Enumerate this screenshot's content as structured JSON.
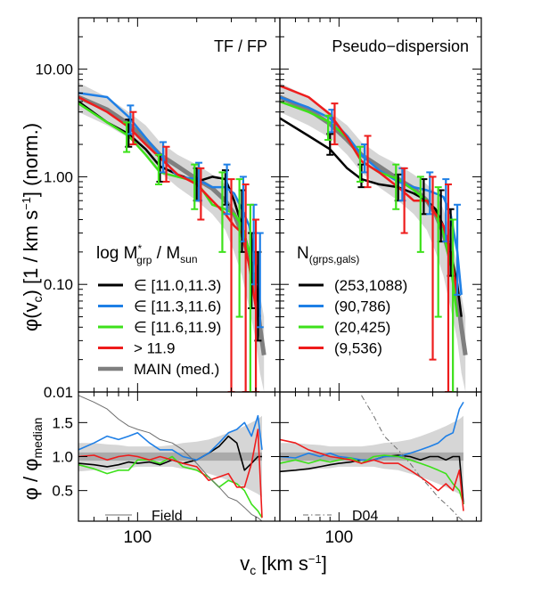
{
  "colors": {
    "black_bin": "#000000",
    "blue_bin": "#1e7fe6",
    "green_bin": "#3de11a",
    "red_bin": "#ee1c1c",
    "main_median": "#7f7f7f",
    "band_light": "#d6d6d6",
    "band_dark": "#aaaaaa",
    "field": "#6e6e6e"
  },
  "labels": {
    "ylabel_top_text": "φ(v",
    "ylabel_top_sub": "c",
    "ylabel_top_rest": ") [1 / km s",
    "ylabel_top_sup": "−1",
    "ylabel_top_end": "] (norm.)",
    "ylabel_bottom": "φ / φ",
    "ylabel_bottom_sub": "median",
    "xlabel_v": "v",
    "xlabel_sub": "c",
    "xlabel_rest": " [km s",
    "xlabel_sup": "−1",
    "xlabel_end": "]",
    "panel_left_title": "TF / FP",
    "panel_right_title": "Pseudo−dispersion",
    "legend_left_head": "log M",
    "legend_left_head_sup": "*",
    "legend_left_head_sub": "grp",
    "legend_left_head_mid": " / M",
    "legend_left_head_sub2": "sun",
    "legend_right_head": "N",
    "legend_right_head_sub": "(grps,gals)",
    "bottom_left_legend": "Field",
    "bottom_right_legend": "D04"
  },
  "legend_left": [
    {
      "label": "∈ [11.0,11.3)",
      "color_key": "black_bin"
    },
    {
      "label": "∈ [11.3,11.6)",
      "color_key": "blue_bin"
    },
    {
      "label": "∈ [11.6,11.9)",
      "color_key": "green_bin"
    },
    {
      "label": "> 11.9",
      "color_key": "red_bin"
    },
    {
      "label": "MAIN (med.)",
      "color_key": "main_median"
    }
  ],
  "legend_right": [
    {
      "label": "(253,1088)",
      "color_key": "black_bin"
    },
    {
      "label": "(90,786)",
      "color_key": "blue_bin"
    },
    {
      "label": "(20,425)",
      "color_key": "green_bin"
    },
    {
      "label": "(9,536)",
      "color_key": "red_bin"
    }
  ],
  "chart_data": [
    {
      "type": "line",
      "panel": "top-left",
      "title": "TF / FP",
      "xscale": "log",
      "yscale": "log",
      "xlim": [
        50,
        530
      ],
      "ylim": [
        0.01,
        30
      ],
      "x_ticks": [
        100
      ],
      "y_ticks": [
        "10.00",
        "1.00",
        "0.10",
        "0.01"
      ],
      "x": [
        50,
        70,
        90,
        110,
        130,
        160,
        200,
        240,
        280,
        310,
        340,
        370,
        400,
        420,
        440
      ],
      "band_low": [
        4.0,
        3.0,
        2.3,
        1.6,
        1.1,
        0.8,
        0.6,
        0.45,
        0.32,
        0.2,
        0.12,
        0.06,
        0.03,
        0.015,
        0.01
      ],
      "band_high": [
        7.5,
        5.5,
        4.0,
        3.0,
        2.1,
        1.6,
        1.3,
        1.05,
        0.85,
        0.7,
        0.5,
        0.3,
        0.15,
        0.08,
        0.05
      ],
      "series": [
        {
          "name": "MAIN (med.)",
          "color_key": "main_median",
          "width": 5,
          "values": [
            5.5,
            4.2,
            3.1,
            2.2,
            1.6,
            1.25,
            0.95,
            0.78,
            0.6,
            0.45,
            0.3,
            0.17,
            0.08,
            0.04,
            0.022
          ]
        },
        {
          "name": "∈ [11.0,11.3)",
          "color_key": "black_bin",
          "width": 2.5,
          "values": [
            5.0,
            3.2,
            2.5,
            1.8,
            1.25,
            1.05,
            0.9,
            1.0,
            0.95,
            0.6,
            0.35,
            0.2,
            0.1,
            0.05,
            null
          ]
        },
        {
          "name": "∈ [11.3,11.6)",
          "color_key": "blue_bin",
          "width": 2.5,
          "values": [
            6.0,
            5.5,
            3.6,
            2.3,
            1.6,
            1.0,
            0.95,
            0.8,
            0.8,
            0.7,
            0.5,
            0.35,
            0.15,
            0.06,
            null
          ]
        },
        {
          "name": "∈ [11.6,11.9)",
          "color_key": "green_bin",
          "width": 2.5,
          "values": [
            4.8,
            3.2,
            2.4,
            1.6,
            1.1,
            1.0,
            0.9,
            0.55,
            0.5,
            0.45,
            0.35,
            0.2,
            0.1,
            null,
            null
          ]
        },
        {
          "name": "> 11.9",
          "color_key": "red_bin",
          "width": 2.5,
          "values": [
            5.5,
            4.0,
            2.9,
            2.0,
            1.5,
            1.05,
            0.85,
            0.6,
            0.45,
            0.35,
            0.3,
            0.15,
            0.06,
            null,
            null
          ]
        }
      ],
      "errorbars": [
        {
          "color_key": "black_bin",
          "x": [
            90,
            130,
            200,
            280,
            340,
            380,
            410
          ],
          "y": [
            2.6,
            1.25,
            0.9,
            0.95,
            0.42,
            0.15,
            0.09
          ],
          "lo": [
            1.9,
            0.9,
            0.6,
            0.55,
            0.2,
            0.06,
            0.03
          ],
          "hi": [
            3.4,
            1.6,
            1.2,
            1.15,
            0.75,
            0.3,
            0.2
          ]
        },
        {
          "color_key": "blue_bin",
          "x": [
            92,
            135,
            205,
            285,
            345,
            390,
            420
          ],
          "y": [
            3.5,
            1.6,
            0.95,
            0.85,
            0.6,
            0.32,
            0.15
          ],
          "lo": [
            2.5,
            1.1,
            0.6,
            0.45,
            0.25,
            0.1,
            0.04
          ],
          "hi": [
            4.6,
            2.1,
            1.35,
            1.3,
            1.0,
            0.55,
            0.3
          ]
        },
        {
          "color_key": "green_bin",
          "x": [
            88,
            128,
            195,
            270,
            330,
            375
          ],
          "y": [
            2.4,
            1.2,
            0.9,
            0.6,
            0.4,
            0.2
          ],
          "lo": [
            1.7,
            0.85,
            0.5,
            0.2,
            0.05,
            0.01
          ],
          "hi": [
            3.2,
            1.6,
            1.3,
            1.1,
            0.95,
            0.55
          ]
        },
        {
          "color_key": "red_bin",
          "x": [
            95,
            140,
            210,
            300,
            355,
            400
          ],
          "y": [
            3.0,
            1.4,
            0.8,
            0.4,
            0.3,
            0.08
          ],
          "lo": [
            2.0,
            0.9,
            0.4,
            0.01,
            0.01,
            0.01
          ],
          "hi": [
            4.0,
            1.9,
            1.2,
            0.95,
            0.85,
            0.4
          ]
        }
      ]
    },
    {
      "type": "line",
      "panel": "top-right",
      "title": "Pseudo−dispersion",
      "xscale": "log",
      "yscale": "log",
      "xlim": [
        50,
        530
      ],
      "ylim": [
        0.01,
        30
      ],
      "x_ticks": [
        100
      ],
      "x": [
        50,
        70,
        90,
        110,
        130,
        160,
        200,
        240,
        280,
        310,
        340,
        370,
        400,
        420,
        440
      ],
      "band_low": [
        4.0,
        3.0,
        2.3,
        1.6,
        1.1,
        0.8,
        0.6,
        0.45,
        0.32,
        0.2,
        0.12,
        0.06,
        0.03,
        0.015,
        0.01
      ],
      "band_high": [
        7.5,
        5.5,
        4.0,
        3.0,
        2.1,
        1.6,
        1.3,
        1.05,
        0.85,
        0.7,
        0.5,
        0.3,
        0.15,
        0.08,
        0.05
      ],
      "series": [
        {
          "name": "MAIN (med.)",
          "color_key": "main_median",
          "width": 5,
          "values": [
            5.5,
            4.2,
            3.1,
            2.2,
            1.6,
            1.25,
            0.95,
            0.78,
            0.6,
            0.45,
            0.3,
            0.17,
            0.08,
            0.04,
            0.022
          ]
        },
        {
          "name": "(253,1088)",
          "color_key": "black_bin",
          "width": 2.5,
          "values": [
            3.5,
            2.4,
            1.8,
            1.2,
            0.95,
            0.85,
            0.8,
            0.7,
            0.6,
            0.5,
            0.35,
            0.2,
            0.1,
            0.05,
            null
          ]
        },
        {
          "name": "(90,786)",
          "color_key": "blue_bin",
          "width": 2.5,
          "values": [
            5.5,
            4.4,
            3.5,
            2.4,
            1.6,
            1.15,
            0.9,
            0.8,
            0.75,
            0.7,
            0.65,
            0.45,
            0.2,
            0.08,
            null
          ]
        },
        {
          "name": "(20,425)",
          "color_key": "green_bin",
          "width": 2.5,
          "values": [
            5.0,
            4.0,
            3.2,
            2.3,
            1.4,
            1.1,
            0.95,
            0.75,
            0.6,
            0.45,
            0.3,
            0.15,
            0.05,
            null,
            null
          ]
        },
        {
          "name": "(9,536)",
          "color_key": "red_bin",
          "width": 2.5,
          "values": [
            7.0,
            5.5,
            3.8,
            2.3,
            1.4,
            1.1,
            0.8,
            0.6,
            0.6,
            0.45,
            0.35,
            0.2,
            0.08,
            null,
            null
          ]
        }
      ],
      "errorbars": [
        {
          "color_key": "black_bin",
          "x": [
            90,
            130,
            200,
            270,
            330,
            370
          ],
          "y": [
            2.0,
            1.0,
            0.85,
            0.7,
            0.5,
            0.3
          ],
          "lo": [
            1.6,
            0.8,
            0.6,
            0.45,
            0.25,
            0.12
          ],
          "hi": [
            2.5,
            1.3,
            1.05,
            0.95,
            0.75,
            0.5
          ]
        },
        {
          "color_key": "blue_bin",
          "x": [
            92,
            135,
            210,
            290,
            350,
            400
          ],
          "y": [
            3.4,
            1.55,
            0.9,
            0.75,
            0.6,
            0.25
          ],
          "lo": [
            2.6,
            1.1,
            0.6,
            0.45,
            0.25,
            0.08
          ],
          "hi": [
            4.2,
            2.0,
            1.2,
            1.1,
            0.95,
            0.55
          ]
        },
        {
          "color_key": "green_bin",
          "x": [
            88,
            128,
            195,
            260,
            320,
            380
          ],
          "y": [
            3.0,
            1.4,
            0.9,
            0.6,
            0.4,
            0.15
          ],
          "lo": [
            2.2,
            0.9,
            0.5,
            0.2,
            0.05,
            0.01
          ],
          "hi": [
            3.7,
            1.9,
            1.3,
            1.0,
            0.8,
            0.4
          ]
        },
        {
          "color_key": "red_bin",
          "x": [
            95,
            140,
            215,
            300,
            360
          ],
          "y": [
            3.3,
            1.6,
            0.8,
            0.45,
            0.35
          ],
          "lo": [
            2.0,
            0.8,
            0.3,
            0.02,
            0.01
          ],
          "hi": [
            4.8,
            2.4,
            1.2,
            1.0,
            0.85
          ]
        }
      ]
    },
    {
      "type": "line",
      "panel": "bottom-left",
      "xscale": "log",
      "yscale": "linear",
      "xlim": [
        50,
        530
      ],
      "ylim": [
        0.05,
        1.95
      ],
      "y_ticks": [
        "0.5",
        "1.0",
        "1.5"
      ],
      "x": [
        50,
        60,
        70,
        80,
        90,
        100,
        115,
        130,
        150,
        170,
        200,
        230,
        260,
        290,
        320,
        350,
        380,
        410,
        430
      ],
      "band_low": [
        0.78,
        0.8,
        0.8,
        0.82,
        0.83,
        0.85,
        0.85,
        0.85,
        0.85,
        0.82,
        0.8,
        0.75,
        0.7,
        0.65,
        0.6,
        0.55,
        0.5,
        0.45,
        0.4
      ],
      "band_high": [
        1.2,
        1.2,
        1.18,
        1.17,
        1.15,
        1.15,
        1.15,
        1.15,
        1.17,
        1.2,
        1.22,
        1.25,
        1.3,
        1.35,
        1.4,
        1.45,
        1.5,
        1.55,
        1.6
      ],
      "series": [
        {
          "name": "∈ [11.0,11.3)",
          "color_key": "black_bin",
          "values": [
            0.9,
            0.88,
            0.85,
            0.88,
            0.92,
            0.9,
            0.92,
            0.88,
            0.95,
            0.9,
            0.95,
            1.05,
            1.15,
            1.3,
            1.2,
            0.8,
            0.9,
            1.0,
            1.0
          ]
        },
        {
          "name": "∈ [11.3,11.6)",
          "color_key": "blue_bin",
          "values": [
            1.1,
            1.2,
            1.3,
            1.25,
            1.3,
            1.35,
            1.2,
            1.1,
            1.1,
            1.0,
            0.95,
            1.05,
            1.2,
            1.35,
            1.4,
            1.5,
            1.3,
            1.6,
            1.1
          ]
        },
        {
          "name": "∈ [11.6,11.9)",
          "color_key": "green_bin",
          "values": [
            0.88,
            0.82,
            0.75,
            0.8,
            0.8,
            0.95,
            0.95,
            0.9,
            1.0,
            0.85,
            0.8,
            0.7,
            0.55,
            0.65,
            0.6,
            0.5,
            0.3,
            0.2,
            0.1
          ]
        },
        {
          "name": "> 11.9",
          "color_key": "red_bin",
          "values": [
            1.0,
            1.02,
            0.95,
            1.0,
            1.02,
            1.0,
            0.95,
            1.0,
            0.95,
            0.9,
            0.85,
            0.65,
            0.7,
            0.75,
            0.55,
            0.55,
            0.9,
            1.4,
            0.1
          ]
        },
        {
          "name": "Field",
          "color_key": "field",
          "values": [
            1.9,
            1.8,
            1.7,
            1.55,
            1.45,
            1.4,
            1.35,
            1.25,
            1.2,
            1.1,
            0.9,
            0.7,
            0.55,
            0.4,
            0.35,
            0.25,
            0.15,
            0.1,
            0.05
          ]
        }
      ]
    },
    {
      "type": "line",
      "panel": "bottom-right",
      "xscale": "log",
      "yscale": "linear",
      "xlim": [
        50,
        530
      ],
      "ylim": [
        0.05,
        1.95
      ],
      "x": [
        50,
        60,
        70,
        80,
        90,
        100,
        115,
        130,
        150,
        170,
        200,
        230,
        260,
        290,
        320,
        350,
        380,
        410,
        430
      ],
      "band_low": [
        0.78,
        0.8,
        0.8,
        0.82,
        0.83,
        0.85,
        0.85,
        0.85,
        0.85,
        0.82,
        0.8,
        0.75,
        0.7,
        0.65,
        0.6,
        0.55,
        0.5,
        0.45,
        0.4
      ],
      "band_high": [
        1.2,
        1.2,
        1.18,
        1.17,
        1.15,
        1.15,
        1.15,
        1.15,
        1.17,
        1.2,
        1.22,
        1.25,
        1.3,
        1.35,
        1.4,
        1.45,
        1.5,
        1.55,
        1.6
      ],
      "series": [
        {
          "name": "(253,1088)",
          "color_key": "black_bin",
          "values": [
            0.78,
            0.8,
            0.82,
            0.85,
            0.88,
            0.9,
            0.92,
            0.95,
            0.95,
            1.0,
            1.02,
            1.0,
            0.95,
            1.0,
            1.0,
            0.95,
            1.0,
            1.0,
            0.3
          ]
        },
        {
          "name": "(90,786)",
          "color_key": "blue_bin",
          "values": [
            1.0,
            0.98,
            1.05,
            1.0,
            1.05,
            1.0,
            0.98,
            0.95,
            0.95,
            1.0,
            1.0,
            1.05,
            1.1,
            1.15,
            1.2,
            1.3,
            1.35,
            1.7,
            1.8
          ]
        },
        {
          "name": "(20,425)",
          "color_key": "green_bin",
          "values": [
            0.9,
            0.95,
            0.9,
            0.95,
            0.92,
            0.95,
            0.98,
            0.9,
            1.0,
            1.02,
            1.0,
            0.95,
            0.9,
            0.85,
            0.8,
            0.75,
            0.6,
            0.5,
            0.3
          ]
        },
        {
          "name": "(9,536)",
          "color_key": "red_bin",
          "values": [
            1.25,
            1.2,
            1.1,
            1.05,
            1.0,
            0.98,
            0.95,
            0.9,
            0.95,
            0.9,
            0.9,
            0.8,
            0.7,
            0.6,
            0.5,
            0.6,
            0.5,
            0.8,
            0.2
          ]
        },
        {
          "name": "D04",
          "color_key": "field",
          "dashed": true,
          "values": [
            null,
            null,
            null,
            null,
            null,
            null,
            null,
            1.9,
            1.6,
            1.3,
            1.1,
            0.9,
            0.7,
            0.55,
            0.4,
            0.3,
            0.2,
            0.1,
            0.05
          ]
        }
      ]
    }
  ]
}
